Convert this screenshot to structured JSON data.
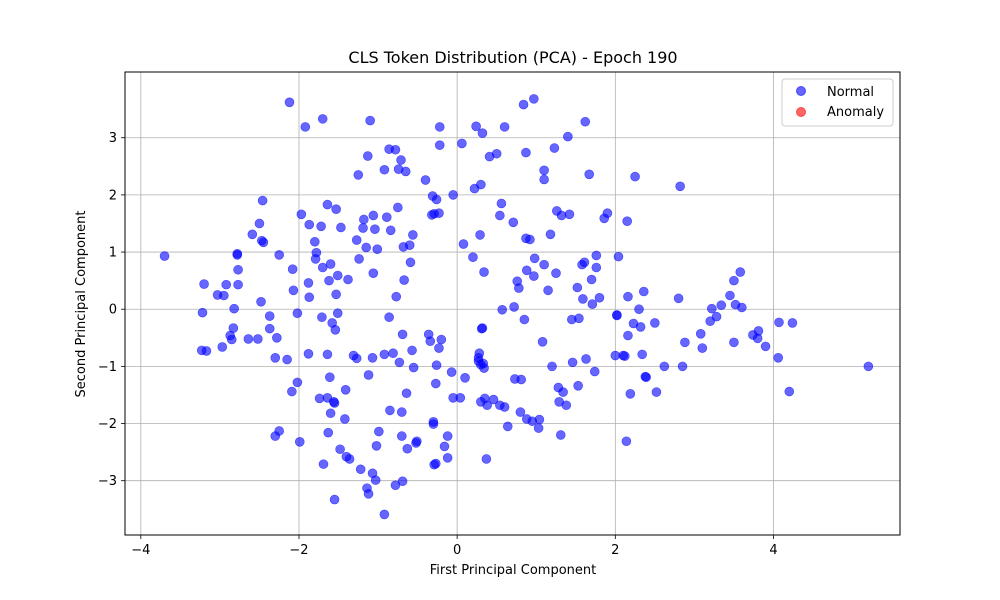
{
  "chart_data": {
    "type": "scatter",
    "title": "CLS Token Distribution (PCA) - Epoch 190",
    "xlabel": "First Principal Component",
    "ylabel": "Second Principal Component",
    "xlim": [
      -4.2,
      5.6
    ],
    "ylim": [
      -3.95,
      4.15
    ],
    "xticks": [
      -4,
      -2,
      0,
      2,
      4
    ],
    "yticks": [
      -3,
      -2,
      -1,
      0,
      1,
      2,
      3
    ],
    "grid": true,
    "legend_position": "top-right",
    "series": [
      {
        "name": "Normal",
        "color": "#0000ff",
        "points": [
          [
            -3.7,
            0.93
          ],
          [
            -3.22,
            -0.06
          ],
          [
            -3.2,
            0.44
          ],
          [
            -3.23,
            -0.72
          ],
          [
            -3.17,
            -0.73
          ],
          [
            -3.03,
            0.25
          ],
          [
            -2.97,
            -0.66
          ],
          [
            -2.95,
            0.24
          ],
          [
            -2.92,
            0.43
          ],
          [
            -2.87,
            -0.46
          ],
          [
            -2.85,
            -0.53
          ],
          [
            -2.83,
            -0.33
          ],
          [
            -2.82,
            0.01
          ],
          [
            -2.78,
            0.97
          ],
          [
            -2.78,
            0.95
          ],
          [
            -2.77,
            0.69
          ],
          [
            -2.77,
            0.43
          ],
          [
            -2.64,
            -0.52
          ],
          [
            -2.59,
            1.31
          ],
          [
            -2.52,
            -0.52
          ],
          [
            -2.5,
            1.5
          ],
          [
            -2.48,
            0.13
          ],
          [
            -2.47,
            1.2
          ],
          [
            -2.45,
            1.17
          ],
          [
            -2.46,
            1.9
          ],
          [
            -2.37,
            -0.34
          ],
          [
            -2.37,
            -0.12
          ],
          [
            -2.3,
            -0.85
          ],
          [
            -2.28,
            -0.5
          ],
          [
            -2.25,
            0.95
          ],
          [
            -2.3,
            -2.22
          ],
          [
            -2.25,
            -2.13
          ],
          [
            -2.15,
            -0.88
          ],
          [
            -2.12,
            3.62
          ],
          [
            -2.09,
            -1.44
          ],
          [
            -2.08,
            0.7
          ],
          [
            -2.07,
            0.33
          ],
          [
            -2.02,
            -0.07
          ],
          [
            -2.02,
            -1.28
          ],
          [
            -1.99,
            -2.32
          ],
          [
            -1.97,
            1.66
          ],
          [
            -1.92,
            3.19
          ],
          [
            -1.88,
            0.46
          ],
          [
            -1.88,
            -0.78
          ],
          [
            -1.87,
            1.48
          ],
          [
            -1.87,
            0.21
          ],
          [
            -1.8,
            1.18
          ],
          [
            -1.78,
            0.99
          ],
          [
            -1.79,
            0.88
          ],
          [
            -1.74,
            -1.56
          ],
          [
            -1.72,
            1.45
          ],
          [
            -1.71,
            -0.14
          ],
          [
            -1.7,
            0.73
          ],
          [
            -1.7,
            3.33
          ],
          [
            -1.69,
            -2.71
          ],
          [
            -1.64,
            -0.79
          ],
          [
            -1.64,
            -1.55
          ],
          [
            -1.64,
            1.83
          ],
          [
            -1.63,
            -2.16
          ],
          [
            -1.62,
            0.5
          ],
          [
            -1.61,
            -1.19
          ],
          [
            -1.6,
            -1.82
          ],
          [
            -1.6,
            0.79
          ],
          [
            -1.58,
            -0.24
          ],
          [
            -1.56,
            -1.62
          ],
          [
            -1.55,
            -1.64
          ],
          [
            -1.55,
            -3.33
          ],
          [
            -1.54,
            -0.36
          ],
          [
            -1.53,
            1.75
          ],
          [
            -1.53,
            0.26
          ],
          [
            -1.51,
            0.59
          ],
          [
            -1.51,
            -0.07
          ],
          [
            -1.48,
            -2.45
          ],
          [
            -1.47,
            1.43
          ],
          [
            -1.42,
            -1.92
          ],
          [
            -1.41,
            -1.41
          ],
          [
            -1.4,
            -2.58
          ],
          [
            -1.38,
            0.52
          ],
          [
            -1.36,
            -2.62
          ],
          [
            -1.31,
            -0.81
          ],
          [
            -1.27,
            -0.86
          ],
          [
            -1.27,
            1.21
          ],
          [
            -1.25,
            2.35
          ],
          [
            -1.24,
            0.88
          ],
          [
            -1.22,
            -2.8
          ],
          [
            -1.19,
            1.42
          ],
          [
            -1.18,
            1.57
          ],
          [
            -1.15,
            1.08
          ],
          [
            -1.14,
            -3.13
          ],
          [
            -1.13,
            2.68
          ],
          [
            -1.12,
            -1.15
          ],
          [
            -1.12,
            -3.23
          ],
          [
            -1.1,
            3.3
          ],
          [
            -1.07,
            -0.85
          ],
          [
            -1.07,
            -2.87
          ],
          [
            -1.06,
            1.64
          ],
          [
            -1.06,
            0.63
          ],
          [
            -1.04,
            1.4
          ],
          [
            -1.03,
            -2.99
          ],
          [
            -1.02,
            -2.39
          ],
          [
            -1.01,
            1.05
          ],
          [
            -0.99,
            -2.14
          ],
          [
            -0.92,
            -3.59
          ],
          [
            -0.92,
            -0.79
          ],
          [
            -0.92,
            2.44
          ],
          [
            -0.89,
            1.61
          ],
          [
            -0.86,
            2.8
          ],
          [
            -0.86,
            -0.14
          ],
          [
            -0.85,
            -1.77
          ],
          [
            -0.84,
            1.38
          ],
          [
            -0.81,
            -0.77
          ],
          [
            -0.78,
            2.79
          ],
          [
            -0.78,
            -3.08
          ],
          [
            -0.77,
            0.22
          ],
          [
            -0.75,
            1.78
          ],
          [
            -0.74,
            2.45
          ],
          [
            -0.73,
            -0.93
          ],
          [
            -0.71,
            2.61
          ],
          [
            -0.7,
            -1.8
          ],
          [
            -0.7,
            -2.22
          ],
          [
            -0.69,
            -3.01
          ],
          [
            -0.69,
            -0.44
          ],
          [
            -0.68,
            1.09
          ],
          [
            -0.67,
            0.51
          ],
          [
            -0.65,
            2.41
          ],
          [
            -0.63,
            -2.44
          ],
          [
            -0.64,
            -1.47
          ],
          [
            -0.6,
            1.12
          ],
          [
            -0.59,
            0.82
          ],
          [
            -0.57,
            -0.72
          ],
          [
            -0.56,
            1.3
          ],
          [
            -0.55,
            -1.02
          ],
          [
            -0.52,
            -2.34
          ],
          [
            -0.51,
            -2.31
          ],
          [
            -0.4,
            2.26
          ],
          [
            -0.36,
            -0.44
          ],
          [
            -0.34,
            -0.56
          ],
          [
            -0.32,
            1.65
          ],
          [
            -0.31,
            1.98
          ],
          [
            -0.3,
            -2.01
          ],
          [
            -0.3,
            -1.97
          ],
          [
            -0.29,
            -2.72
          ],
          [
            -0.29,
            1.67
          ],
          [
            -0.27,
            -2.7
          ],
          [
            -0.27,
            -1.3
          ],
          [
            -0.26,
            -0.98
          ],
          [
            -0.26,
            1.92
          ],
          [
            -0.23,
            1.68
          ],
          [
            -0.23,
            -0.68
          ],
          [
            -0.22,
            2.87
          ],
          [
            -0.22,
            3.19
          ],
          [
            -0.2,
            -0.53
          ],
          [
            -0.16,
            -2.4
          ],
          [
            -0.12,
            -2.22
          ],
          [
            -0.12,
            -2.6
          ],
          [
            -0.07,
            -1.1
          ],
          [
            -0.05,
            2.0
          ],
          [
            -0.05,
            -1.55
          ],
          [
            0.04,
            -1.55
          ],
          [
            0.06,
            2.9
          ],
          [
            0.08,
            1.14
          ],
          [
            0.1,
            -1.2
          ],
          [
            0.2,
            0.91
          ],
          [
            0.22,
            2.11
          ],
          [
            0.24,
            3.2
          ],
          [
            0.27,
            -0.85
          ],
          [
            0.27,
            -0.91
          ],
          [
            0.28,
            -0.77
          ],
          [
            0.29,
            1.3
          ],
          [
            0.3,
            2.18
          ],
          [
            0.3,
            -0.97
          ],
          [
            0.3,
            -1.62
          ],
          [
            0.31,
            -0.34
          ],
          [
            0.32,
            -0.33
          ],
          [
            0.32,
            3.08
          ],
          [
            0.33,
            -0.95
          ],
          [
            0.34,
            0.65
          ],
          [
            0.34,
            -1.03
          ],
          [
            0.35,
            -1.56
          ],
          [
            0.37,
            -2.62
          ],
          [
            0.38,
            -1.68
          ],
          [
            0.41,
            2.67
          ],
          [
            0.46,
            -1.58
          ],
          [
            0.5,
            2.72
          ],
          [
            0.54,
            -1.68
          ],
          [
            0.54,
            1.64
          ],
          [
            0.56,
            1.85
          ],
          [
            0.57,
            -0.01
          ],
          [
            0.6,
            -1.71
          ],
          [
            0.6,
            3.19
          ],
          [
            0.64,
            -2.05
          ],
          [
            0.71,
            1.52
          ],
          [
            0.72,
            0.04
          ],
          [
            0.73,
            -1.22
          ],
          [
            0.76,
            0.49
          ],
          [
            0.78,
            0.37
          ],
          [
            0.8,
            -1.8
          ],
          [
            0.81,
            -1.23
          ],
          [
            0.84,
            3.58
          ],
          [
            0.85,
            -0.18
          ],
          [
            0.87,
            2.74
          ],
          [
            0.87,
            1.24
          ],
          [
            0.88,
            -1.92
          ],
          [
            0.88,
            0.68
          ],
          [
            0.92,
            1.22
          ],
          [
            0.95,
            -1.96
          ],
          [
            0.97,
            3.68
          ],
          [
            0.97,
            0.58
          ],
          [
            0.98,
            0.89
          ],
          [
            1.03,
            -2.08
          ],
          [
            1.04,
            -1.93
          ],
          [
            1.08,
            -0.57
          ],
          [
            1.1,
            2.43
          ],
          [
            1.1,
            2.27
          ],
          [
            1.1,
            0.78
          ],
          [
            1.15,
            0.33
          ],
          [
            1.18,
            1.31
          ],
          [
            1.2,
            -1.0
          ],
          [
            1.23,
            2.82
          ],
          [
            1.25,
            0.63
          ],
          [
            1.26,
            1.72
          ],
          [
            1.28,
            -1.37
          ],
          [
            1.29,
            -1.62
          ],
          [
            1.31,
            -2.2
          ],
          [
            1.32,
            1.64
          ],
          [
            1.34,
            -1.45
          ],
          [
            1.38,
            -1.68
          ],
          [
            1.4,
            3.02
          ],
          [
            1.42,
            1.66
          ],
          [
            1.45,
            -0.18
          ],
          [
            1.46,
            -0.93
          ],
          [
            1.52,
            0.38
          ],
          [
            1.53,
            -1.34
          ],
          [
            1.54,
            -0.16
          ],
          [
            1.58,
            0.78
          ],
          [
            1.59,
            0.18
          ],
          [
            1.61,
            0.82
          ],
          [
            1.62,
            3.28
          ],
          [
            1.63,
            -0.87
          ],
          [
            1.67,
            2.36
          ],
          [
            1.7,
            0.52
          ],
          [
            1.71,
            0.09
          ],
          [
            1.74,
            -1.09
          ],
          [
            1.76,
            0.94
          ],
          [
            1.76,
            0.73
          ],
          [
            1.8,
            0.2
          ],
          [
            1.86,
            1.59
          ],
          [
            1.9,
            1.68
          ],
          [
            2.0,
            -0.81
          ],
          [
            2.02,
            -0.1
          ],
          [
            2.02,
            -0.11
          ],
          [
            2.04,
            0.92
          ],
          [
            2.1,
            -0.81
          ],
          [
            2.12,
            -0.82
          ],
          [
            2.14,
            -2.31
          ],
          [
            2.15,
            1.54
          ],
          [
            2.16,
            -0.46
          ],
          [
            2.16,
            0.22
          ],
          [
            2.19,
            -1.48
          ],
          [
            2.23,
            -0.25
          ],
          [
            2.25,
            2.32
          ],
          [
            2.3,
            0.0
          ],
          [
            2.32,
            -0.31
          ],
          [
            2.34,
            -0.79
          ],
          [
            2.36,
            0.31
          ],
          [
            2.38,
            -1.18
          ],
          [
            2.39,
            -1.19
          ],
          [
            2.5,
            -0.24
          ],
          [
            2.52,
            -1.45
          ],
          [
            2.62,
            -1.0
          ],
          [
            2.8,
            0.19
          ],
          [
            2.82,
            2.15
          ],
          [
            2.85,
            -1.0
          ],
          [
            2.88,
            -0.58
          ],
          [
            3.08,
            -0.43
          ],
          [
            3.1,
            -0.68
          ],
          [
            3.2,
            -0.21
          ],
          [
            3.22,
            0.01
          ],
          [
            3.28,
            -0.13
          ],
          [
            3.34,
            0.07
          ],
          [
            3.45,
            0.24
          ],
          [
            3.5,
            0.5
          ],
          [
            3.5,
            -0.58
          ],
          [
            3.52,
            0.08
          ],
          [
            3.58,
            0.65
          ],
          [
            3.6,
            0.03
          ],
          [
            3.74,
            -0.45
          ],
          [
            3.8,
            -0.51
          ],
          [
            3.81,
            -0.38
          ],
          [
            3.9,
            -0.65
          ],
          [
            4.06,
            -0.85
          ],
          [
            4.07,
            -0.23
          ],
          [
            4.2,
            -1.44
          ],
          [
            4.24,
            -0.24
          ],
          [
            5.2,
            -1.0
          ]
        ]
      },
      {
        "name": "Anomaly",
        "color": "#ff0000",
        "points": []
      }
    ]
  }
}
